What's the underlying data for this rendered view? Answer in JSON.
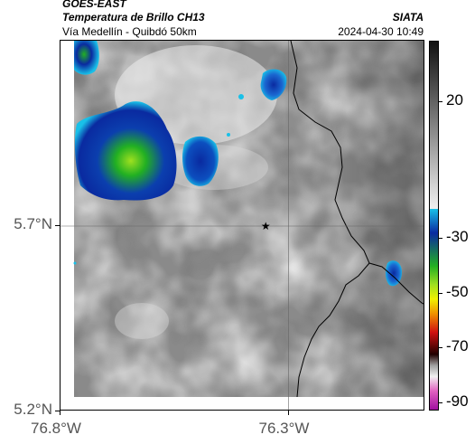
{
  "header": {
    "org": "GOES-EAST",
    "product": "Temperatura de Brillo CH13",
    "brand": "SIATA",
    "route": "Vía Medellín - Quibdó 50km",
    "timestamp": "2024-04-30 10:49"
  },
  "axes": {
    "y_ticks": [
      {
        "value": 5.7,
        "label": "5.7°N"
      },
      {
        "value": 5.2,
        "label": "5.2°N"
      }
    ],
    "x_ticks": [
      {
        "value": -76.8,
        "label": "76.8°W"
      },
      {
        "value": -76.3,
        "label": "76.3°W"
      }
    ],
    "lon_range": [
      -76.8,
      -76.0
    ],
    "lat_range": [
      5.2,
      6.2
    ],
    "grid": true
  },
  "colorbar": {
    "units_label": "",
    "ticks": [
      {
        "value": 20,
        "label": "20"
      },
      {
        "value": -30,
        "label": "-30"
      },
      {
        "value": -50,
        "label": "-50"
      },
      {
        "value": -70,
        "label": "-70"
      },
      {
        "value": -90,
        "label": "-90"
      }
    ],
    "range": [
      -93,
      42
    ]
  },
  "marker": {
    "icon": "star-icon",
    "lon": -76.35,
    "lat": 5.7
  },
  "colors": {
    "cold_cloud_blue": "#0a2aa0",
    "cold_cloud_cyan": "#19c0e8",
    "cold_cloud_green": "#22b022",
    "cold_cloud_lime": "#88e020",
    "background_gray": "#8a8a8a",
    "land_border": "#000000"
  }
}
